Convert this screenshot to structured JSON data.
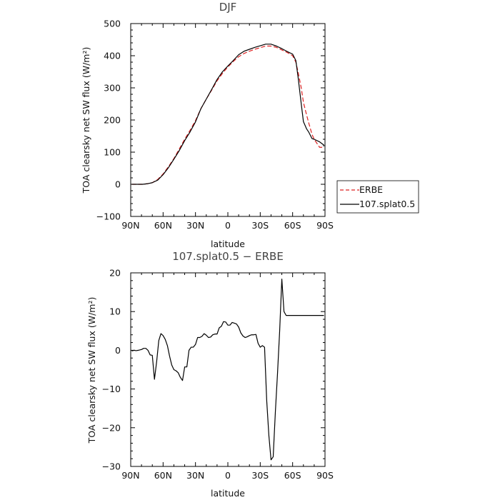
{
  "chart_data": [
    {
      "type": "line",
      "title": "DJF",
      "xlabel": "latitude",
      "ylabel": "TOA clearsky net SW flux (W/m²)",
      "xlim": [
        -90,
        90
      ],
      "ylim": [
        -100,
        500
      ],
      "xticks": [
        {
          "value": -90,
          "label": "90N"
        },
        {
          "value": -60,
          "label": "60N"
        },
        {
          "value": -30,
          "label": "30N"
        },
        {
          "value": 0,
          "label": "0"
        },
        {
          "value": 30,
          "label": "30S"
        },
        {
          "value": 60,
          "label": "60S"
        },
        {
          "value": 90,
          "label": "90S"
        }
      ],
      "yticks": [
        {
          "value": -100,
          "label": "−100"
        },
        {
          "value": 0,
          "label": "0"
        },
        {
          "value": 100,
          "label": "100"
        },
        {
          "value": 200,
          "label": "200"
        },
        {
          "value": 300,
          "label": "300"
        },
        {
          "value": 400,
          "label": "400"
        },
        {
          "value": 500,
          "label": "500"
        }
      ],
      "legend_position": "right",
      "series": [
        {
          "name": "ERBE",
          "color": "#dd2222",
          "dash": true,
          "x": [
            -89,
            -84,
            -79,
            -74,
            -70,
            -65,
            -60,
            -55,
            -50,
            -45,
            -40,
            -35,
            -30,
            -25,
            -20,
            -15,
            -10,
            -5,
            0,
            5,
            10,
            15,
            20,
            25,
            30,
            35,
            40,
            45,
            50,
            55,
            60,
            63,
            65,
            68,
            70,
            73,
            75,
            78,
            80,
            85,
            89
          ],
          "y": [
            0,
            0,
            0,
            2,
            5,
            15,
            32,
            55,
            80,
            110,
            140,
            168,
            198,
            235,
            265,
            293,
            322,
            345,
            365,
            382,
            397,
            407,
            414,
            420,
            425,
            430,
            430,
            426,
            418,
            410,
            400,
            380,
            350,
            300,
            255,
            215,
            190,
            155,
            140,
            115,
            115
          ]
        },
        {
          "name": "107.splat0.5",
          "color": "#000000",
          "dash": false,
          "x": [
            -89,
            -84,
            -79,
            -74,
            -70,
            -65,
            -60,
            -55,
            -50,
            -45,
            -40,
            -35,
            -30,
            -25,
            -20,
            -15,
            -10,
            -5,
            0,
            5,
            10,
            15,
            20,
            25,
            30,
            35,
            40,
            45,
            50,
            55,
            60,
            63,
            65,
            68,
            70,
            73,
            75,
            78,
            80,
            85,
            89
          ],
          "y": [
            0,
            0,
            0,
            2,
            5,
            13,
            30,
            52,
            78,
            105,
            136,
            163,
            194,
            235,
            265,
            295,
            326,
            350,
            368,
            385,
            403,
            414,
            420,
            426,
            431,
            436,
            436,
            430,
            422,
            413,
            405,
            385,
            335,
            250,
            195,
            172,
            162,
            142,
            140,
            132,
            122
          ]
        }
      ]
    },
    {
      "type": "line",
      "title": "107.splat0.5 − ERBE",
      "xlabel": "latitude",
      "ylabel": "TOA clearsky net SW flux (W/m²)",
      "xlim": [
        -90,
        90
      ],
      "ylim": [
        -30,
        20
      ],
      "xticks": [
        {
          "value": -90,
          "label": "90N"
        },
        {
          "value": -60,
          "label": "60N"
        },
        {
          "value": -30,
          "label": "30N"
        },
        {
          "value": 0,
          "label": "0"
        },
        {
          "value": 30,
          "label": "30S"
        },
        {
          "value": 60,
          "label": "60S"
        },
        {
          "value": 90,
          "label": "90S"
        }
      ],
      "yticks": [
        {
          "value": -30,
          "label": "−30"
        },
        {
          "value": -20,
          "label": "−20"
        },
        {
          "value": -10,
          "label": "−10"
        },
        {
          "value": 0,
          "label": "0"
        },
        {
          "value": 10,
          "label": "10"
        },
        {
          "value": 20,
          "label": "20"
        }
      ],
      "series": [
        {
          "color": "#000000",
          "dash": false,
          "x": [
            -89,
            -87,
            -85,
            -83,
            -80,
            -78,
            -76,
            -74,
            -72,
            -70,
            -68,
            -66,
            -64,
            -62,
            -60,
            -58,
            -56,
            -54,
            -52,
            -50,
            -48,
            -46,
            -44,
            -42,
            -40,
            -38,
            -36,
            -34,
            -32,
            -30,
            -28,
            -26,
            -24,
            -22,
            -20,
            -18,
            -16,
            -14,
            -12,
            -10,
            -8,
            -6,
            -4,
            -2,
            0,
            2,
            4,
            6,
            8,
            10,
            12,
            14,
            16,
            18,
            20,
            22,
            24,
            26,
            28,
            30,
            32,
            34,
            36,
            38,
            40,
            42,
            44,
            46,
            48,
            50,
            52,
            54,
            56,
            58,
            60,
            62,
            64,
            66,
            68,
            70,
            72,
            74,
            76,
            78,
            80,
            82,
            84,
            86,
            88,
            89
          ],
          "y": [
            -0.2,
            0,
            -0.1,
            0,
            0.2,
            0.5,
            0.5,
            0,
            -1.2,
            -1.3,
            -7.5,
            -3,
            2.5,
            4.3,
            3.8,
            2.8,
            1.2,
            -1.5,
            -3.8,
            -5,
            -5.3,
            -5.8,
            -7,
            -7.8,
            -4.3,
            -4.3,
            0,
            0.8,
            0.8,
            1.5,
            3.3,
            3.3,
            3.6,
            4.3,
            3.9,
            3.3,
            3.4,
            4,
            4.2,
            4.2,
            5.8,
            6.2,
            7.4,
            7.3,
            6.5,
            6.5,
            7.2,
            7,
            6.8,
            6,
            4.5,
            3.7,
            3.3,
            3.5,
            3.8,
            4,
            4,
            4.1,
            1.8,
            0.8,
            1.2,
            0.8,
            -13,
            -22,
            -28.3,
            -27.5,
            -16,
            -6,
            5,
            18.4,
            10,
            9,
            9,
            9,
            9,
            9,
            9,
            9,
            9,
            9,
            9,
            9,
            9,
            9,
            9,
            9,
            9,
            9,
            9,
            9
          ]
        }
      ]
    }
  ]
}
